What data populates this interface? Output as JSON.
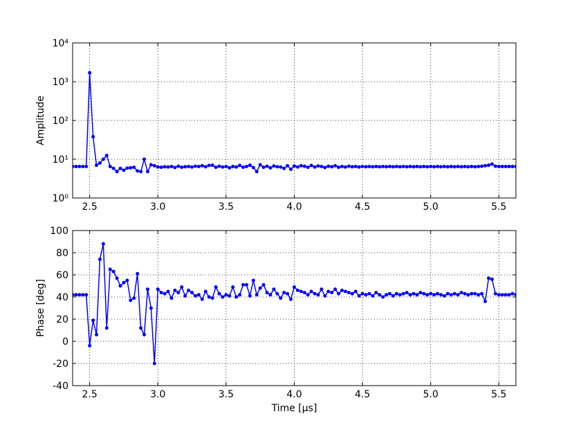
{
  "chart_data": [
    {
      "type": "line",
      "ylabel": "Amplitude",
      "yscale": "log",
      "grid": true,
      "xlim": [
        2.375,
        5.625
      ],
      "ylim": [
        1,
        10000
      ],
      "xticks": [
        2.5,
        {
          "value": 3,
          "label": "3.0"
        },
        3.5,
        {
          "value": 4,
          "label": "4.0"
        },
        4.5,
        {
          "value": 5,
          "label": "5.0"
        },
        5.5
      ],
      "yticks": [
        {
          "value": 1,
          "label": "10⁰"
        },
        {
          "value": 10,
          "label": "10¹"
        },
        {
          "value": 100,
          "label": "10²"
        },
        {
          "value": 1000,
          "label": "10³"
        },
        {
          "value": 10000,
          "label": "10⁴"
        }
      ],
      "x": [
        2.375,
        2.4,
        2.425,
        2.45,
        2.475,
        2.5,
        2.525,
        2.55,
        2.575,
        2.6,
        2.625,
        2.65,
        2.675,
        2.7,
        2.725,
        2.75,
        2.775,
        2.8,
        2.825,
        2.85,
        2.875,
        2.9,
        2.925,
        2.95,
        2.975,
        3.0,
        3.025,
        3.05,
        3.075,
        3.1,
        3.125,
        3.15,
        3.175,
        3.2,
        3.225,
        3.25,
        3.275,
        3.3,
        3.325,
        3.35,
        3.375,
        3.4,
        3.425,
        3.45,
        3.475,
        3.5,
        3.525,
        3.55,
        3.575,
        3.6,
        3.625,
        3.65,
        3.675,
        3.7,
        3.725,
        3.75,
        3.775,
        3.8,
        3.825,
        3.85,
        3.875,
        3.9,
        3.925,
        3.95,
        3.975,
        4.0,
        4.025,
        4.05,
        4.075,
        4.1,
        4.125,
        4.15,
        4.175,
        4.2,
        4.225,
        4.25,
        4.275,
        4.3,
        4.325,
        4.35,
        4.375,
        4.4,
        4.425,
        4.45,
        4.475,
        4.5,
        4.525,
        4.55,
        4.575,
        4.6,
        4.625,
        4.65,
        4.675,
        4.7,
        4.725,
        4.75,
        4.775,
        4.8,
        4.825,
        4.85,
        4.875,
        4.9,
        4.925,
        4.95,
        4.975,
        5.0,
        5.025,
        5.05,
        5.075,
        5.1,
        5.125,
        5.15,
        5.175,
        5.2,
        5.225,
        5.25,
        5.275,
        5.3,
        5.325,
        5.35,
        5.375,
        5.4,
        5.425,
        5.45,
        5.475,
        5.5,
        5.525,
        5.55,
        5.575,
        5.6,
        5.625
      ],
      "series": [
        {
          "color": "#0000ff",
          "values": [
            6.5,
            6.5,
            6.5,
            6.5,
            6.5,
            1700,
            38,
            7,
            8,
            10,
            12.5,
            6.5,
            5.8,
            4.8,
            5.8,
            5.2,
            5.9,
            6,
            6.2,
            5,
            4.8,
            10,
            4.8,
            7.2,
            6.8,
            6.3,
            6.2,
            6.4,
            6.3,
            6.5,
            6.1,
            6.6,
            6.2,
            6.4,
            6.5,
            6.3,
            6.6,
            6.5,
            6.8,
            6.4,
            6.9,
            7,
            6.2,
            6.6,
            6.3,
            6.5,
            6.0,
            6.5,
            6.3,
            6.9,
            6.2,
            6.5,
            7.0,
            6.1,
            4.8,
            7.2,
            6.2,
            6.6,
            6.0,
            6.7,
            6.4,
            6.3,
            5.8,
            6.8,
            5.5,
            6.7,
            6.3,
            6.8,
            6.6,
            6.2,
            6.9,
            6.3,
            6.7,
            6.5,
            6.1,
            6.6,
            6.4,
            6.8,
            6.2,
            6.5,
            6.3,
            6.6,
            6.4,
            6.5,
            6.3,
            6.5,
            6.4,
            6.5,
            6.4,
            6.5,
            6.4,
            6.5,
            6.4,
            6.5,
            6.4,
            6.5,
            6.4,
            6.5,
            6.4,
            6.5,
            6.4,
            6.5,
            6.4,
            6.5,
            6.4,
            6.5,
            6.4,
            6.5,
            6.4,
            6.5,
            6.4,
            6.5,
            6.4,
            6.5,
            6.4,
            6.5,
            6.4,
            6.5,
            6.4,
            6.5,
            6.6,
            6.8,
            7.0,
            7.5,
            6.6,
            6.5,
            6.5,
            6.5,
            6.5,
            6.5,
            6.5
          ]
        }
      ]
    },
    {
      "type": "line",
      "xlabel": "Time [μs]",
      "ylabel": "Phase [deg]",
      "grid": true,
      "xlim": [
        2.375,
        5.625
      ],
      "ylim": [
        -40,
        100
      ],
      "xticks": [
        2.5,
        {
          "value": 3,
          "label": "3.0"
        },
        3.5,
        {
          "value": 4,
          "label": "4.0"
        },
        4.5,
        {
          "value": 5,
          "label": "5.0"
        },
        5.5
      ],
      "yticks": [
        -40,
        -20,
        0,
        20,
        40,
        60,
        80,
        100
      ],
      "x": [
        2.375,
        2.4,
        2.425,
        2.45,
        2.475,
        2.5,
        2.525,
        2.55,
        2.575,
        2.6,
        2.625,
        2.65,
        2.675,
        2.7,
        2.725,
        2.75,
        2.775,
        2.8,
        2.825,
        2.85,
        2.875,
        2.9,
        2.925,
        2.95,
        2.975,
        3.0,
        3.025,
        3.05,
        3.075,
        3.1,
        3.125,
        3.15,
        3.175,
        3.2,
        3.225,
        3.25,
        3.275,
        3.3,
        3.325,
        3.35,
        3.375,
        3.4,
        3.425,
        3.45,
        3.475,
        3.5,
        3.525,
        3.55,
        3.575,
        3.6,
        3.625,
        3.65,
        3.675,
        3.7,
        3.725,
        3.75,
        3.775,
        3.8,
        3.825,
        3.85,
        3.875,
        3.9,
        3.925,
        3.95,
        3.975,
        4.0,
        4.025,
        4.05,
        4.075,
        4.1,
        4.125,
        4.15,
        4.175,
        4.2,
        4.225,
        4.25,
        4.275,
        4.3,
        4.325,
        4.35,
        4.375,
        4.4,
        4.425,
        4.45,
        4.475,
        4.5,
        4.525,
        4.55,
        4.575,
        4.6,
        4.625,
        4.65,
        4.675,
        4.7,
        4.725,
        4.75,
        4.775,
        4.8,
        4.825,
        4.85,
        4.875,
        4.9,
        4.925,
        4.95,
        4.975,
        5.0,
        5.025,
        5.05,
        5.075,
        5.1,
        5.125,
        5.15,
        5.175,
        5.2,
        5.225,
        5.25,
        5.275,
        5.3,
        5.325,
        5.35,
        5.375,
        5.4,
        5.425,
        5.45,
        5.475,
        5.5,
        5.525,
        5.55,
        5.575,
        5.6,
        5.625
      ],
      "series": [
        {
          "color": "#0000ff",
          "values": [
            42,
            42,
            42,
            42,
            42,
            -4,
            19,
            6,
            74,
            88,
            12,
            65,
            63,
            57,
            50,
            53,
            55,
            37,
            39,
            61,
            12,
            6,
            47,
            30,
            -20,
            47,
            44,
            43,
            45,
            39,
            46,
            44,
            49,
            41,
            46,
            44,
            41,
            42,
            38,
            45,
            40,
            39,
            49,
            43,
            40,
            42,
            41,
            49,
            40,
            42,
            51,
            51,
            41,
            55,
            42,
            48,
            51,
            44,
            42,
            47,
            43,
            39,
            44,
            43,
            38,
            49,
            46,
            45,
            44,
            42,
            45,
            43,
            42,
            47,
            41,
            45,
            44,
            47,
            43,
            46,
            45,
            44,
            43,
            45,
            41,
            43,
            42,
            43,
            41,
            44,
            42,
            40,
            42,
            43,
            41,
            43,
            42,
            43,
            44,
            42,
            43,
            42,
            44,
            43,
            42,
            43,
            42,
            43,
            42,
            41,
            43,
            42,
            43,
            42,
            44,
            43,
            42,
            43,
            43,
            42,
            43,
            36,
            57,
            56,
            43,
            42,
            42,
            42,
            42,
            43,
            42
          ]
        }
      ]
    }
  ]
}
